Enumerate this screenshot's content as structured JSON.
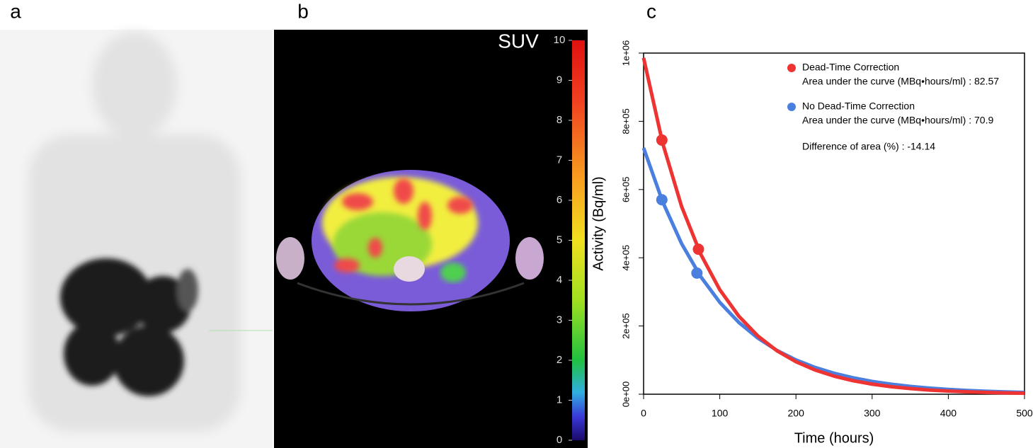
{
  "panels": {
    "a": {
      "label": "a"
    },
    "b": {
      "label": "b",
      "colorbar_title": "SUV",
      "colorbar_range": [
        0,
        10
      ],
      "colorbar_ticks": [
        0,
        1,
        2,
        3,
        4,
        5,
        6,
        7,
        8,
        9,
        10
      ]
    }
  },
  "chart_data": {
    "type": "line",
    "panel_label": "c",
    "x_label": "Time (hours)",
    "y_label": "Activity (Bq/ml)",
    "xlim": [
      0,
      500
    ],
    "xticks": [
      0,
      100,
      200,
      300,
      400,
      500
    ],
    "ylim": [
      0,
      1000000
    ],
    "yticks": [
      {
        "value": 0,
        "label": "0e+00"
      },
      {
        "value": 200000,
        "label": "2e+05"
      },
      {
        "value": 400000,
        "label": "4e+05"
      },
      {
        "value": 600000,
        "label": "6e+05"
      },
      {
        "value": 800000,
        "label": "8e+05"
      },
      {
        "value": 1000000,
        "label": "1e+06"
      }
    ],
    "x": [
      0,
      25,
      50,
      75,
      100,
      125,
      150,
      175,
      200,
      225,
      250,
      275,
      300,
      325,
      350,
      375,
      400,
      425,
      450,
      475,
      500
    ],
    "series": [
      {
        "name": "Dead-Time Correction",
        "color": "#ee3333",
        "values": [
          986000,
          736100,
          549600,
          410300,
          306300,
          228700,
          170700,
          127500,
          95200,
          71100,
          53100,
          39600,
          29600,
          22100,
          16500,
          12300,
          9200,
          6900,
          5100,
          3800,
          2900
        ],
        "markers": {
          "x": [
            24,
            72
          ],
          "values": [
            745000,
            425000
          ]
        }
      },
      {
        "name": "No Dead-Time Correction",
        "color": "#4a7fe0",
        "values": [
          722000,
          564200,
          440900,
          344600,
          269300,
          210500,
          164500,
          128500,
          100500,
          78500,
          61400,
          48000,
          37500,
          29300,
          22900,
          17900,
          14000,
          10900,
          8500,
          6700,
          5200
        ],
        "markers": {
          "x": [
            24,
            70
          ],
          "values": [
            570000,
            355000
          ]
        }
      }
    ],
    "annotations": [
      "Area under the curve (MBq•hours/ml) : 82.57",
      "Area under the curve (MBq•hours/ml) : 70.9",
      "Difference of area (%) : -14.14"
    ]
  }
}
